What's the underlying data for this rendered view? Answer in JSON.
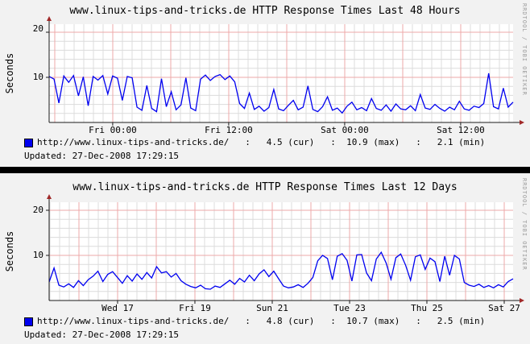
{
  "page": {
    "background": "#f2f2f2",
    "divider_color": "#000000",
    "colors": {
      "canvas": "#ffffff",
      "grid_minor": "#dcdcdc",
      "grid_major": "#eda8a8",
      "axis": "#1b1b1b",
      "arrow": "#a02828",
      "text": "#000000",
      "watermark": "#9a9a9a"
    }
  },
  "chart_data": [
    {
      "type": "line",
      "title": "www.linux-tips-and-tricks.de HTTP Response Times Last 48 Hours",
      "ylabel": "Seconds",
      "ylim": [
        0,
        21
      ],
      "yticks": [
        10,
        20
      ],
      "grid": true,
      "xticks": [
        "Fri 00:00",
        "Fri 12:00",
        "Sat 00:00",
        "Sat 12:00"
      ],
      "xtick_pos": [
        0.137,
        0.387,
        0.637,
        0.887
      ],
      "series": [
        {
          "name": "http://www.linux-tips-and-tricks.de/",
          "color": "#0000f0",
          "values": [
            10.2,
            9.6,
            4.3,
            10.3,
            8.9,
            10.4,
            5.9,
            10.1,
            3.7,
            10.2,
            9.4,
            10.4,
            6.3,
            10.3,
            9.8,
            4.9,
            10.2,
            9.9,
            3.4,
            2.7,
            8.2,
            3.1,
            2.4,
            9.7,
            3.5,
            6.8,
            2.8,
            3.9,
            9.9,
            3.2,
            2.6,
            9.6,
            10.5,
            9.3,
            10.2,
            10.6,
            9.5,
            10.3,
            9.0,
            4.2,
            3.1,
            6.5,
            2.9,
            3.6,
            2.5,
            3.3,
            7.3,
            3.0,
            2.6,
            3.8,
            4.9,
            2.8,
            3.4,
            8.1,
            2.9,
            2.4,
            3.5,
            5.7,
            2.7,
            3.2,
            2.1,
            3.6,
            4.5,
            2.8,
            3.3,
            2.6,
            5.3,
            3.1,
            2.7,
            3.9,
            2.5,
            4.1,
            3.0,
            2.8,
            3.7,
            2.6,
            6.2,
            3.2,
            2.9,
            4.0,
            3.1,
            2.5,
            3.4,
            2.8,
            4.7,
            3.0,
            2.7,
            3.6,
            3.3,
            4.2,
            10.9,
            3.5,
            3.0,
            7.6,
            3.4,
            4.5
          ]
        }
      ],
      "legend": {
        "position": "bottom-left",
        "swatch_color": "#0000f0",
        "series": "http://www.linux-tips-and-tricks.de/",
        "cur": "4.5",
        "max": "10.9",
        "min": "2.1",
        "display": "http://www.linux-tips-and-tricks.de/   :   4.5 (cur)   :  10.9 (max)   :   2.1 (min)"
      },
      "updated": "Updated: 27-Dec-2008 17:29:15",
      "watermark": "RRDTOOL / TOBI OETIKER"
    },
    {
      "type": "line",
      "title": "www.linux-tips-and-tricks.de HTTP Response Times Last 12 Days",
      "ylabel": "Seconds",
      "ylim": [
        0,
        21
      ],
      "yticks": [
        10,
        20
      ],
      "grid": true,
      "xticks": [
        "Wed 17",
        "Fri 19",
        "Sun 21",
        "Tue 23",
        "Thu 25",
        "Sat 27"
      ],
      "xtick_pos": [
        0.1475,
        0.3142,
        0.4809,
        0.6476,
        0.8142,
        0.9809
      ],
      "series": [
        {
          "name": "http://www.linux-tips-and-tricks.de/",
          "color": "#0000f0",
          "values": [
            4.1,
            7.2,
            3.4,
            3.0,
            3.7,
            2.9,
            4.4,
            3.3,
            4.6,
            5.4,
            6.5,
            4.2,
            5.8,
            6.4,
            5.1,
            3.8,
            5.5,
            4.3,
            5.9,
            4.7,
            6.2,
            5.0,
            7.5,
            6.1,
            6.4,
            5.2,
            6.0,
            4.4,
            3.6,
            3.1,
            2.8,
            3.4,
            2.6,
            2.5,
            3.2,
            2.9,
            3.7,
            4.5,
            3.6,
            4.9,
            4.1,
            5.6,
            4.4,
            5.9,
            6.8,
            5.3,
            6.5,
            4.8,
            3.2,
            2.8,
            3.0,
            3.5,
            2.9,
            3.8,
            5.1,
            8.8,
            10.0,
            9.3,
            4.6,
            9.8,
            10.4,
            8.9,
            4.3,
            10.1,
            10.2,
            6.1,
            4.4,
            9.2,
            10.7,
            8.3,
            4.7,
            9.5,
            10.3,
            7.8,
            4.5,
            9.7,
            10.1,
            6.9,
            9.4,
            8.6,
            4.2,
            9.8,
            5.6,
            10.0,
            9.2,
            4.0,
            3.4,
            3.1,
            3.6,
            2.9,
            3.3,
            2.8,
            3.5,
            3.0,
            4.2,
            4.8
          ]
        }
      ],
      "legend": {
        "position": "bottom-left",
        "swatch_color": "#0000f0",
        "series": "http://www.linux-tips-and-tricks.de/",
        "cur": "4.8",
        "max": "10.7",
        "min": "2.5",
        "display": "http://www.linux-tips-and-tricks.de/   :   4.8 (cur)   :  10.7 (max)   :   2.5 (min)"
      },
      "updated": "Updated: 27-Dec-2008 17:29:15",
      "watermark": "RRDTOOL / TOBI OETIKER"
    }
  ]
}
